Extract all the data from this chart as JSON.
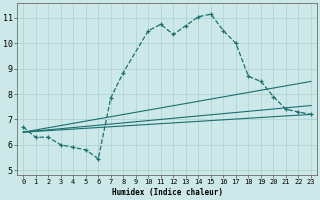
{
  "xlabel": "Humidex (Indice chaleur)",
  "ylabel": "",
  "bg_color": "#cce8e8",
  "line_color": "#1a6e6e",
  "grid_color": "#aad0d0",
  "xlim": [
    -0.5,
    23.5
  ],
  "ylim": [
    4.8,
    11.6
  ],
  "xticks": [
    0,
    1,
    2,
    3,
    4,
    5,
    6,
    7,
    8,
    9,
    10,
    11,
    12,
    13,
    14,
    15,
    16,
    17,
    18,
    19,
    20,
    21,
    22,
    23
  ],
  "yticks": [
    5,
    6,
    7,
    8,
    9,
    10,
    11
  ],
  "main_curve": {
    "x": [
      0,
      1,
      2,
      3,
      4,
      5,
      6,
      7,
      8,
      9,
      10,
      11,
      12,
      13,
      14,
      15,
      16,
      17,
      18,
      19,
      20,
      21,
      22,
      23
    ],
    "y": [
      6.7,
      6.3,
      6.3,
      6.0,
      5.9,
      5.8,
      5.45,
      7.85,
      8.85,
      null,
      10.5,
      10.75,
      10.35,
      10.7,
      11.05,
      11.15,
      10.5,
      10.0,
      8.7,
      8.5,
      7.9,
      7.4,
      7.3,
      7.2
    ]
  },
  "trend_lines": [
    {
      "x": [
        0,
        23
      ],
      "y": [
        6.5,
        8.5
      ]
    },
    {
      "x": [
        0,
        23
      ],
      "y": [
        6.5,
        7.55
      ]
    },
    {
      "x": [
        0,
        23
      ],
      "y": [
        6.5,
        7.2
      ]
    }
  ]
}
